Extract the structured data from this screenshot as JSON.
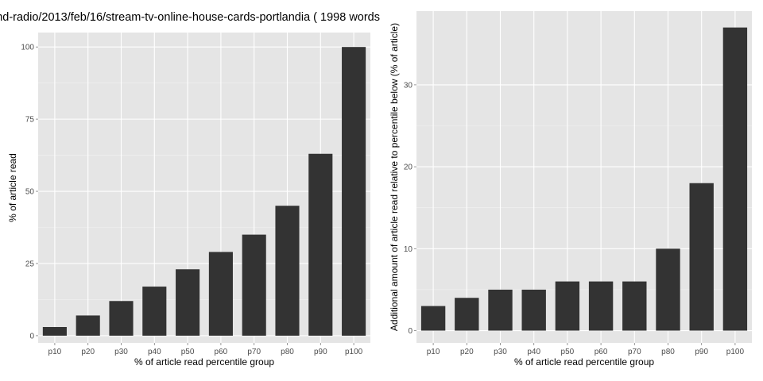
{
  "title": "nd-radio/2013/feb/16/stream-tv-online-house-cards-portlandia ( 1998 words",
  "chart_data": [
    {
      "type": "bar",
      "categories": [
        "p10",
        "p20",
        "p30",
        "p40",
        "p50",
        "p60",
        "p70",
        "p80",
        "p90",
        "p100"
      ],
      "values": [
        3,
        7,
        12,
        17,
        23,
        29,
        35,
        45,
        63,
        100
      ],
      "xlabel": "% of article read percentile group",
      "ylabel": "% of article read",
      "ylim": [
        -2.5,
        105
      ],
      "yticks": [
        0,
        25,
        50,
        75,
        100
      ],
      "grid": true
    },
    {
      "type": "bar",
      "categories": [
        "p10",
        "p20",
        "p30",
        "p40",
        "p50",
        "p60",
        "p70",
        "p80",
        "p90",
        "p100"
      ],
      "values": [
        3,
        4,
        5,
        5,
        6,
        6,
        6,
        10,
        18,
        37
      ],
      "xlabel": "% of article read percentile group",
      "ylabel": "Additional amount of article read relative to percentile below (% of article)",
      "ylim": [
        -1.5,
        39
      ],
      "yticks": [
        0,
        10,
        20,
        30
      ],
      "grid": true
    }
  ],
  "colors": {
    "panel": "#e5e5e5",
    "grid_major": "#ffffff",
    "grid_minor": "#f2f2f2",
    "bar": "#333333"
  }
}
